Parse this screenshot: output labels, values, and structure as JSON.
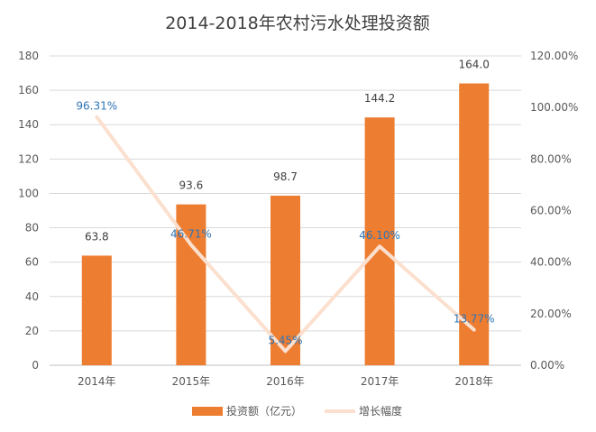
{
  "chart_data": {
    "type": "bar",
    "title": "2014-2018年农村污水处理投资额",
    "categories": [
      "2014年",
      "2015年",
      "2016年",
      "2017年",
      "2018年"
    ],
    "series": [
      {
        "name": "投资额（亿元）",
        "type": "bar",
        "axis": "left",
        "values": [
          63.8,
          93.6,
          98.7,
          144.2,
          164.0
        ],
        "labels": [
          "63.8",
          "93.6",
          "98.7",
          "144.2",
          "164.0"
        ],
        "color": "#ed7d31"
      },
      {
        "name": "增长幅度",
        "type": "line",
        "axis": "right",
        "values": [
          96.31,
          46.71,
          5.45,
          46.1,
          13.77
        ],
        "labels": [
          "96.31%",
          "46.71%",
          "5.45%",
          "46.10%",
          "13.77%"
        ],
        "color": "#fbe0cf"
      }
    ],
    "y_left": {
      "min": 0,
      "max": 180,
      "ticks": [
        "0",
        "20",
        "40",
        "60",
        "80",
        "100",
        "120",
        "140",
        "160",
        "180"
      ]
    },
    "y_right": {
      "min": 0,
      "max": 120,
      "ticks": [
        "0.00%",
        "20.00%",
        "40.00%",
        "60.00%",
        "80.00%",
        "100.00%",
        "120.00%"
      ]
    },
    "grid": true,
    "legend": "bottom"
  }
}
